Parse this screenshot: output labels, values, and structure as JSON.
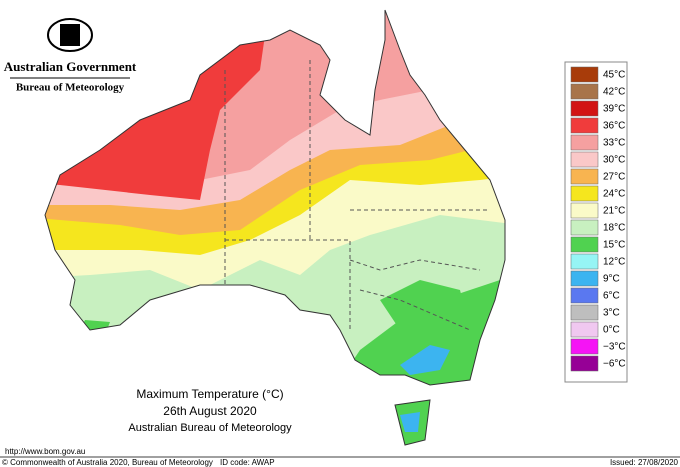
{
  "header": {
    "government": "Australian Government",
    "bureau": "Bureau of Meteorology"
  },
  "legend": {
    "items": [
      {
        "label": "45°C",
        "color": "#a83c0a"
      },
      {
        "label": "42°C",
        "color": "#a8744a"
      },
      {
        "label": "39°C",
        "color": "#d21414"
      },
      {
        "label": "36°C",
        "color": "#f03c3c"
      },
      {
        "label": "33°C",
        "color": "#f5a0a0"
      },
      {
        "label": "30°C",
        "color": "#fac8c8"
      },
      {
        "label": "27°C",
        "color": "#f8b450"
      },
      {
        "label": "24°C",
        "color": "#f5e61e"
      },
      {
        "label": "21°C",
        "color": "#fafac8"
      },
      {
        "label": "18°C",
        "color": "#c8f0c0"
      },
      {
        "label": "15°C",
        "color": "#50d250"
      },
      {
        "label": "12°C",
        "color": "#96f5f5"
      },
      {
        "label": "9°C",
        "color": "#3cb4f0"
      },
      {
        "label": "6°C",
        "color": "#5a78f0"
      },
      {
        "label": "3°C",
        "color": "#bebebe"
      },
      {
        "label": "0°C",
        "color": "#f0c8f0"
      },
      {
        "label": "−3°C",
        "color": "#f514f5"
      },
      {
        "label": "−6°C",
        "color": "#960096"
      }
    ]
  },
  "map_title": {
    "line1": "Maximum Temperature (°C)",
    "line2": "26th August 2020",
    "line3": "Australian Bureau of Meteorology"
  },
  "footer": {
    "url": "http://www.bom.gov.au",
    "copyright": "© Commonwealth of Australia 2020, Bureau of Meteorology",
    "id_code": "ID code: AWAP",
    "issued": "Issued: 27/08/2020"
  }
}
